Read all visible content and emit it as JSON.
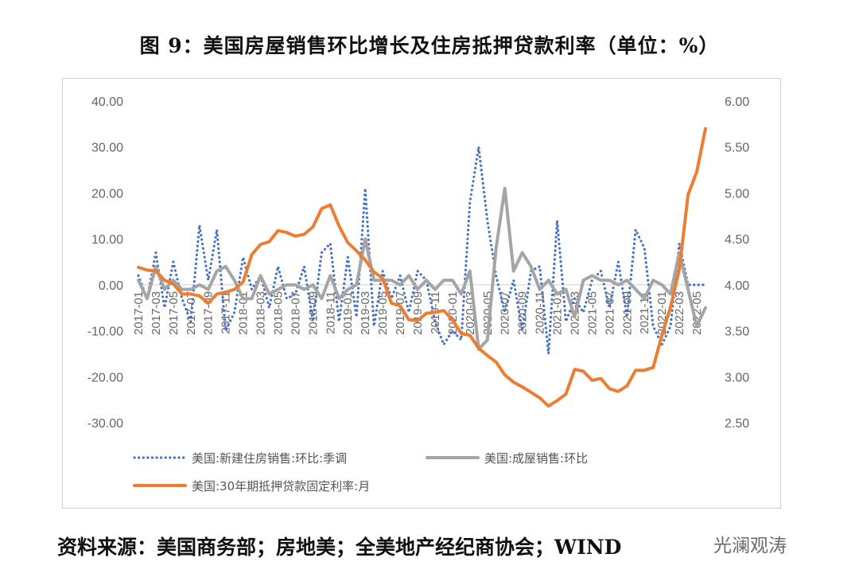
{
  "title": "图 9：美国房屋销售环比增长及住房抵押贷款利率（单位：%）",
  "source": "资料来源：美国商务部；房地美；全美地产经纪商协会；WIND",
  "watermark": "光澜观涛",
  "chart_data": {
    "type": "line",
    "title": "图 9：美国房屋销售环比增长及住房抵押贷款利率（单位：%）",
    "y_left": {
      "min": -30,
      "max": 40,
      "step": 10,
      "decimals": 2
    },
    "y_right": {
      "min": 2.5,
      "max": 6.0,
      "step": 0.5,
      "decimals": 2
    },
    "x_tick_labels": [
      "2017-01",
      "2017-03",
      "2017-05",
      "2017-07",
      "2017-09",
      "2017-11",
      "2018-01",
      "2018-03",
      "2018-05",
      "2018-07",
      "2018-09",
      "2018-11",
      "2019-01",
      "2019-03",
      "2019-05",
      "2019-07",
      "2019-09",
      "2019-11",
      "2020-01",
      "2020-03",
      "2020-05",
      "2020-07",
      "2020-09",
      "2020-11",
      "2021-01",
      "2021-03",
      "2021-05",
      "2021-07",
      "2021-09",
      "2021-11",
      "2022-01",
      "2022-03",
      "2022-05"
    ],
    "x": [
      "2017-01",
      "2017-02",
      "2017-03",
      "2017-04",
      "2017-05",
      "2017-06",
      "2017-07",
      "2017-08",
      "2017-09",
      "2017-10",
      "2017-11",
      "2017-12",
      "2018-01",
      "2018-02",
      "2018-03",
      "2018-04",
      "2018-05",
      "2018-06",
      "2018-07",
      "2018-08",
      "2018-09",
      "2018-10",
      "2018-11",
      "2018-12",
      "2019-01",
      "2019-02",
      "2019-03",
      "2019-04",
      "2019-05",
      "2019-06",
      "2019-07",
      "2019-08",
      "2019-09",
      "2019-10",
      "2019-11",
      "2019-12",
      "2020-01",
      "2020-02",
      "2020-03",
      "2020-04",
      "2020-05",
      "2020-06",
      "2020-07",
      "2020-08",
      "2020-09",
      "2020-10",
      "2020-11",
      "2020-12",
      "2021-01",
      "2021-02",
      "2021-03",
      "2021-04",
      "2021-05",
      "2021-06",
      "2021-07",
      "2021-08",
      "2021-09",
      "2021-10",
      "2021-11",
      "2021-12",
      "2022-01",
      "2022-02",
      "2022-03",
      "2022-04",
      "2022-05",
      "2022-06"
    ],
    "series": [
      {
        "name": "美国:新建住房销售:环比:季调",
        "axis": "left",
        "style": "dotted",
        "color": "#4472C4",
        "values": [
          2,
          -3,
          7,
          -5,
          5,
          -3,
          -8,
          13,
          1,
          12,
          -10,
          -6,
          6,
          -1,
          2,
          -5,
          4,
          -3,
          -2,
          4,
          -8,
          7,
          9,
          -8,
          6,
          -7,
          21,
          -9,
          3,
          -3,
          2,
          -6,
          3,
          1,
          -8,
          -13,
          -10,
          -12,
          18,
          30,
          14,
          2,
          -6,
          1,
          -10,
          3,
          4,
          -15,
          14,
          -8,
          -3,
          -6,
          1,
          3,
          -5,
          5,
          -7,
          12,
          8,
          -9,
          -13,
          -9,
          9,
          0,
          0,
          0
        ]
      },
      {
        "name": "美国:成屋销售:环比",
        "axis": "left",
        "style": "solid",
        "color": "#A5A5A5",
        "values": [
          1,
          -3,
          4,
          -1,
          1,
          -1,
          -1,
          0,
          -1,
          3,
          4,
          1,
          -3,
          -3,
          2,
          -2,
          -1,
          0,
          0,
          -1,
          0,
          -3,
          2,
          -3,
          -1,
          0,
          10,
          1,
          1,
          1,
          0,
          2,
          -1,
          1,
          -1,
          1,
          1,
          -2,
          3,
          -14,
          -12,
          8,
          21,
          3,
          7,
          4,
          -1,
          1,
          -2,
          -1,
          -7,
          1,
          2,
          1,
          1,
          0,
          1,
          -1,
          -3,
          1,
          0,
          -2,
          7,
          -1,
          -9,
          -5
        ]
      },
      {
        "name": "美国:30年期抵押贷款固定利率:月",
        "axis": "right",
        "style": "solid",
        "color": "#ED7D31",
        "values": [
          4.19,
          4.16,
          4.15,
          4.05,
          4.01,
          3.9,
          3.9,
          3.88,
          3.8,
          3.9,
          3.92,
          3.95,
          4.03,
          4.33,
          4.44,
          4.47,
          4.59,
          4.57,
          4.53,
          4.55,
          4.63,
          4.83,
          4.87,
          4.64,
          4.46,
          4.37,
          4.27,
          4.14,
          4.07,
          3.8,
          3.77,
          3.62,
          3.61,
          3.69,
          3.7,
          3.72,
          3.62,
          3.47,
          3.45,
          3.31,
          3.23,
          3.16,
          3.02,
          2.94,
          2.89,
          2.83,
          2.77,
          2.68,
          2.74,
          2.81,
          3.08,
          3.06,
          2.96,
          2.98,
          2.87,
          2.84,
          2.9,
          3.07,
          3.07,
          3.1,
          3.45,
          3.76,
          4.17,
          4.98,
          5.23,
          5.7
        ]
      }
    ],
    "legend": {
      "placement": "bottom",
      "entries": [
        "美国:新建住房销售:环比:季调",
        "美国:成屋销售:环比",
        "美国:30年期抵押贷款固定利率:月"
      ]
    },
    "grid": false
  }
}
